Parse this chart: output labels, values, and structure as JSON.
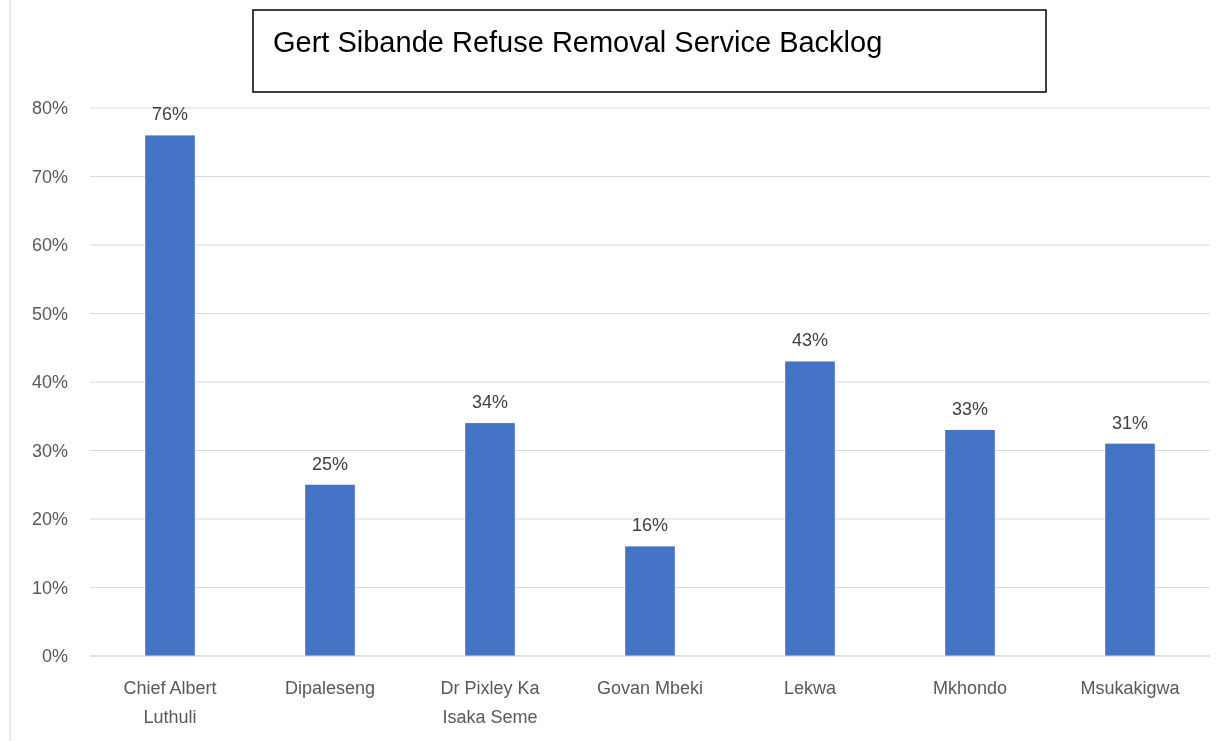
{
  "chart_data": {
    "type": "bar",
    "title": "Gert Sibande Refuse Removal Service Backlog",
    "categories": [
      "Chief Albert Luthuli",
      "Dipaleseng",
      "Dr Pixley Ka Isaka Seme",
      "Govan Mbeki",
      "Lekwa",
      "Mkhondo",
      "Msukakigwa"
    ],
    "values": [
      76,
      25,
      34,
      16,
      43,
      33,
      31
    ],
    "value_labels": [
      "76%",
      "25%",
      "34%",
      "16%",
      "43%",
      "33%",
      "31%"
    ],
    "color": "#4472c4",
    "ylim": [
      0,
      80
    ],
    "yticks": [
      {
        "value": 0,
        "label": "0%"
      },
      {
        "value": 10,
        "label": "10%"
      },
      {
        "value": 20,
        "label": "20%"
      },
      {
        "value": 30,
        "label": "30%"
      },
      {
        "value": 40,
        "label": "40%"
      },
      {
        "value": 50,
        "label": "50%"
      },
      {
        "value": 60,
        "label": "60%"
      },
      {
        "value": 70,
        "label": "70%"
      },
      {
        "value": 80,
        "label": "80%"
      }
    ],
    "grid": "y"
  }
}
